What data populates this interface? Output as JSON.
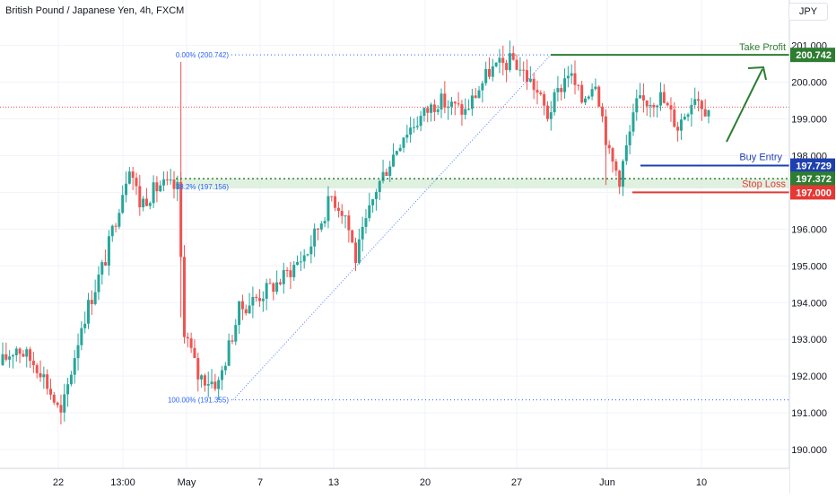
{
  "header": {
    "title": "British Pound / Japanese Yen, 4h, FXCM",
    "currency": "JPY"
  },
  "colors": {
    "up": "#26a69a",
    "down": "#ef5350",
    "take_profit": "#2e7d32",
    "buy_entry": "#1e40af",
    "support": "#2e7d32",
    "stop_loss": "#e53935",
    "fib": "#2962ff",
    "price_line": "#ef5350",
    "zone": "#c8e6c9"
  },
  "chart_data": {
    "type": "candlestick",
    "symbol": "British Pound / Japanese Yen",
    "timeframe": "4h",
    "ylim": [
      189.6,
      201.8
    ],
    "xlabels": [
      "22",
      "13:00",
      "May",
      "7",
      "13",
      "20",
      "27",
      "Jun",
      "10"
    ],
    "yticks": [
      "190.000",
      "191.000",
      "192.000",
      "193.000",
      "194.000",
      "195.000",
      "196.000",
      "197.000",
      "198.000",
      "199.000",
      "200.000",
      "201.000"
    ],
    "levels": [
      {
        "label": "Take Profit",
        "value": "200.742"
      },
      {
        "label": "Buy Entry",
        "value": "197.729"
      },
      {
        "label": "",
        "value": "197.372"
      },
      {
        "label": "Stop Loss",
        "value": "197.000"
      }
    ],
    "fib_labels": [
      "0.00% (200.742)",
      "38.2% (197.156)",
      "100.00% (191.355)"
    ],
    "anchors": [
      {
        "t": 0,
        "p": 192.3
      },
      {
        "t": 5,
        "p": 192.8
      },
      {
        "t": 12,
        "p": 192.2
      },
      {
        "t": 18,
        "p": 190.9
      },
      {
        "t": 24,
        "p": 193.4
      },
      {
        "t": 31,
        "p": 195.2
      },
      {
        "t": 38,
        "p": 197.8
      },
      {
        "t": 41,
        "p": 196.7
      },
      {
        "t": 47,
        "p": 197.2
      },
      {
        "t": 52,
        "p": 197.1
      },
      {
        "t": 54,
        "p": 193.3
      },
      {
        "t": 58,
        "p": 192.0
      },
      {
        "t": 64,
        "p": 191.8
      },
      {
        "t": 70,
        "p": 193.8
      },
      {
        "t": 82,
        "p": 194.6
      },
      {
        "t": 90,
        "p": 195.4
      },
      {
        "t": 97,
        "p": 196.9
      },
      {
        "t": 101,
        "p": 196.4
      },
      {
        "t": 104,
        "p": 195.2
      },
      {
        "t": 110,
        "p": 197.1
      },
      {
        "t": 118,
        "p": 198.6
      },
      {
        "t": 128,
        "p": 199.5
      },
      {
        "t": 136,
        "p": 199.2
      },
      {
        "t": 143,
        "p": 200.3
      },
      {
        "t": 150,
        "p": 200.6
      },
      {
        "t": 156,
        "p": 199.9
      },
      {
        "t": 160,
        "p": 199.1
      },
      {
        "t": 166,
        "p": 200.3
      },
      {
        "t": 170,
        "p": 199.5
      },
      {
        "t": 174,
        "p": 200.1
      },
      {
        "t": 178,
        "p": 198.0
      },
      {
        "t": 181,
        "p": 197.4
      },
      {
        "t": 186,
        "p": 199.4
      },
      {
        "t": 193,
        "p": 199.6
      },
      {
        "t": 198,
        "p": 198.8
      },
      {
        "t": 203,
        "p": 199.7
      },
      {
        "t": 206,
        "p": 199.3
      }
    ]
  }
}
